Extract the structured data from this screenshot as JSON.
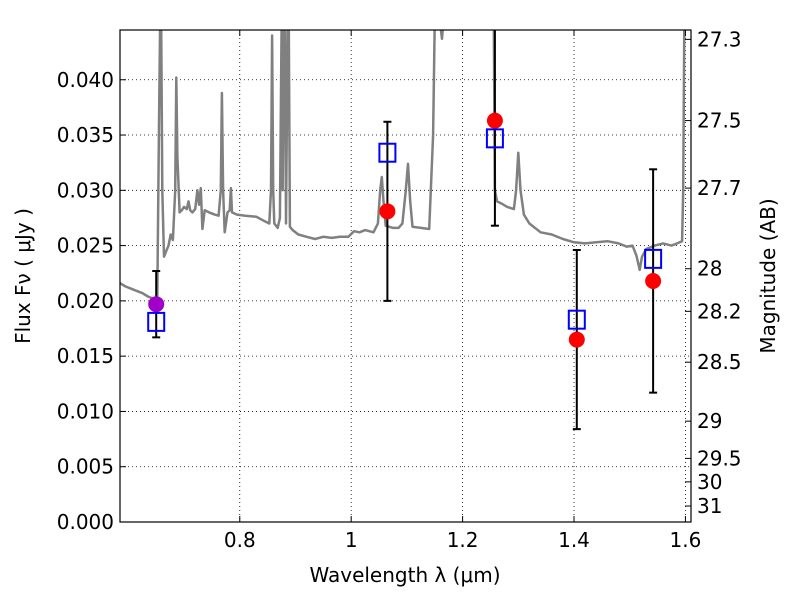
{
  "chart_data": {
    "type": "scatter",
    "xlabel": "Wavelength  λ (μm)",
    "ylabel": "Flux  Fν  ( μJy )",
    "y2label": "Magnitude (AB)",
    "xlim": [
      0.585,
      1.61
    ],
    "ylim": [
      0.0,
      0.0445
    ],
    "x_ticks": [
      "0.8",
      "1",
      "1.2",
      "1.4",
      "1.6"
    ],
    "y_ticks": [
      "0.000",
      "0.005",
      "0.010",
      "0.015",
      "0.020",
      "0.025",
      "0.030",
      "0.035",
      "0.040"
    ],
    "y2_ticks": [
      "27.3",
      "27.5",
      "27.7",
      "28",
      "28.2",
      "28.5",
      "29",
      "29.5",
      "30",
      "31"
    ],
    "grid": true,
    "series": [
      {
        "kind": "line",
        "color": "#808080",
        "points": [
          [
            0.585,
            0.0216
          ],
          [
            0.595,
            0.0213
          ],
          [
            0.605,
            0.0211
          ],
          [
            0.615,
            0.0209
          ],
          [
            0.625,
            0.0207
          ],
          [
            0.635,
            0.0204
          ],
          [
            0.645,
            0.0202
          ],
          [
            0.652,
            0.0204
          ],
          [
            0.655,
            0.036
          ],
          [
            0.657,
            0.045
          ],
          [
            0.659,
            0.045
          ],
          [
            0.661,
            0.03
          ],
          [
            0.664,
            0.024
          ],
          [
            0.668,
            0.0245
          ],
          [
            0.672,
            0.025
          ],
          [
            0.676,
            0.026
          ],
          [
            0.68,
            0.0255
          ],
          [
            0.684,
            0.03
          ],
          [
            0.686,
            0.0402
          ],
          [
            0.688,
            0.033
          ],
          [
            0.692,
            0.028
          ],
          [
            0.696,
            0.0282
          ],
          [
            0.7,
            0.0285
          ],
          [
            0.705,
            0.0283
          ],
          [
            0.708,
            0.029
          ],
          [
            0.711,
            0.0282
          ],
          [
            0.715,
            0.028
          ],
          [
            0.72,
            0.0283
          ],
          [
            0.724,
            0.03
          ],
          [
            0.727,
            0.0287
          ],
          [
            0.73,
            0.0302
          ],
          [
            0.733,
            0.0265
          ],
          [
            0.737,
            0.0282
          ],
          [
            0.745,
            0.028
          ],
          [
            0.755,
            0.0278
          ],
          [
            0.762,
            0.0277
          ],
          [
            0.766,
            0.03
          ],
          [
            0.768,
            0.0388
          ],
          [
            0.77,
            0.03
          ],
          [
            0.773,
            0.0262
          ],
          [
            0.778,
            0.028
          ],
          [
            0.782,
            0.0282
          ],
          [
            0.784,
            0.0302
          ],
          [
            0.786,
            0.028
          ],
          [
            0.795,
            0.0278
          ],
          [
            0.81,
            0.0277
          ],
          [
            0.83,
            0.0276
          ],
          [
            0.845,
            0.0272
          ],
          [
            0.853,
            0.027
          ],
          [
            0.856,
            0.03
          ],
          [
            0.858,
            0.044
          ],
          [
            0.86,
            0.03
          ],
          [
            0.862,
            0.027
          ],
          [
            0.868,
            0.0266
          ],
          [
            0.872,
            0.0275
          ],
          [
            0.875,
            0.045
          ],
          [
            0.877,
            0.03
          ],
          [
            0.879,
            0.045
          ],
          [
            0.881,
            0.045
          ],
          [
            0.883,
            0.027
          ],
          [
            0.886,
            0.045
          ],
          [
            0.888,
            0.045
          ],
          [
            0.89,
            0.0267
          ],
          [
            0.895,
            0.0264
          ],
          [
            0.905,
            0.026
          ],
          [
            0.92,
            0.0258
          ],
          [
            0.935,
            0.0256
          ],
          [
            0.95,
            0.0258
          ],
          [
            0.965,
            0.0257
          ],
          [
            0.98,
            0.0258
          ],
          [
            0.995,
            0.0258
          ],
          [
            1.005,
            0.0263
          ],
          [
            1.015,
            0.0262
          ],
          [
            1.025,
            0.0264
          ],
          [
            1.04,
            0.0262
          ],
          [
            1.048,
            0.027
          ],
          [
            1.052,
            0.03
          ],
          [
            1.055,
            0.0312
          ],
          [
            1.058,
            0.029
          ],
          [
            1.062,
            0.0268
          ],
          [
            1.075,
            0.0266
          ],
          [
            1.085,
            0.0266
          ],
          [
            1.092,
            0.027
          ],
          [
            1.098,
            0.03
          ],
          [
            1.102,
            0.0324
          ],
          [
            1.106,
            0.029
          ],
          [
            1.11,
            0.0267
          ],
          [
            1.125,
            0.0266
          ],
          [
            1.14,
            0.0265
          ],
          [
            1.147,
            0.035
          ],
          [
            1.15,
            0.045
          ],
          [
            1.16,
            0.045
          ],
          [
            1.163,
            0.0437
          ],
          [
            1.165,
            0.045
          ],
          [
            1.185,
            0.045
          ],
          [
            1.2,
            0.045
          ],
          [
            1.222,
            0.045
          ],
          [
            1.24,
            0.045
          ],
          [
            1.256,
            0.045
          ],
          [
            1.258,
            0.03
          ],
          [
            1.262,
            0.029
          ],
          [
            1.27,
            0.0288
          ],
          [
            1.28,
            0.0285
          ],
          [
            1.292,
            0.0283
          ],
          [
            1.296,
            0.03
          ],
          [
            1.3,
            0.0334
          ],
          [
            1.304,
            0.03
          ],
          [
            1.31,
            0.0278
          ],
          [
            1.32,
            0.027
          ],
          [
            1.34,
            0.0262
          ],
          [
            1.36,
            0.026
          ],
          [
            1.38,
            0.0256
          ],
          [
            1.4,
            0.0253
          ],
          [
            1.42,
            0.0252
          ],
          [
            1.44,
            0.0253
          ],
          [
            1.46,
            0.0254
          ],
          [
            1.48,
            0.0252
          ],
          [
            1.495,
            0.0249
          ],
          [
            1.505,
            0.025
          ],
          [
            1.512,
            0.0241
          ],
          [
            1.518,
            0.0228
          ],
          [
            1.522,
            0.024
          ],
          [
            1.53,
            0.0247
          ],
          [
            1.545,
            0.025
          ],
          [
            1.56,
            0.0252
          ],
          [
            1.575,
            0.025
          ],
          [
            1.585,
            0.0252
          ],
          [
            1.594,
            0.0254
          ],
          [
            1.596,
            0.03
          ],
          [
            1.598,
            0.045
          ],
          [
            1.61,
            0.045
          ]
        ]
      },
      {
        "kind": "points",
        "marker": "filled-circle",
        "color": "#ff0000",
        "x": [
          1.065,
          1.258,
          1.405,
          1.542
        ],
        "y": [
          0.0281,
          0.0363,
          0.0165,
          0.0218
        ],
        "yerr": [
          0.0081,
          0.0095,
          0.0081,
          0.0101
        ]
      },
      {
        "kind": "points",
        "marker": "filled-circle",
        "color": "#a000c8",
        "x": [
          0.65
        ],
        "y": [
          0.0197
        ],
        "yerr": [
          0.003
        ]
      },
      {
        "kind": "points",
        "marker": "open-square",
        "color": "#0000ff",
        "x": [
          0.65,
          1.065,
          1.258,
          1.405,
          1.542
        ],
        "y": [
          0.0181,
          0.0334,
          0.0347,
          0.0183,
          0.0238
        ]
      }
    ]
  }
}
